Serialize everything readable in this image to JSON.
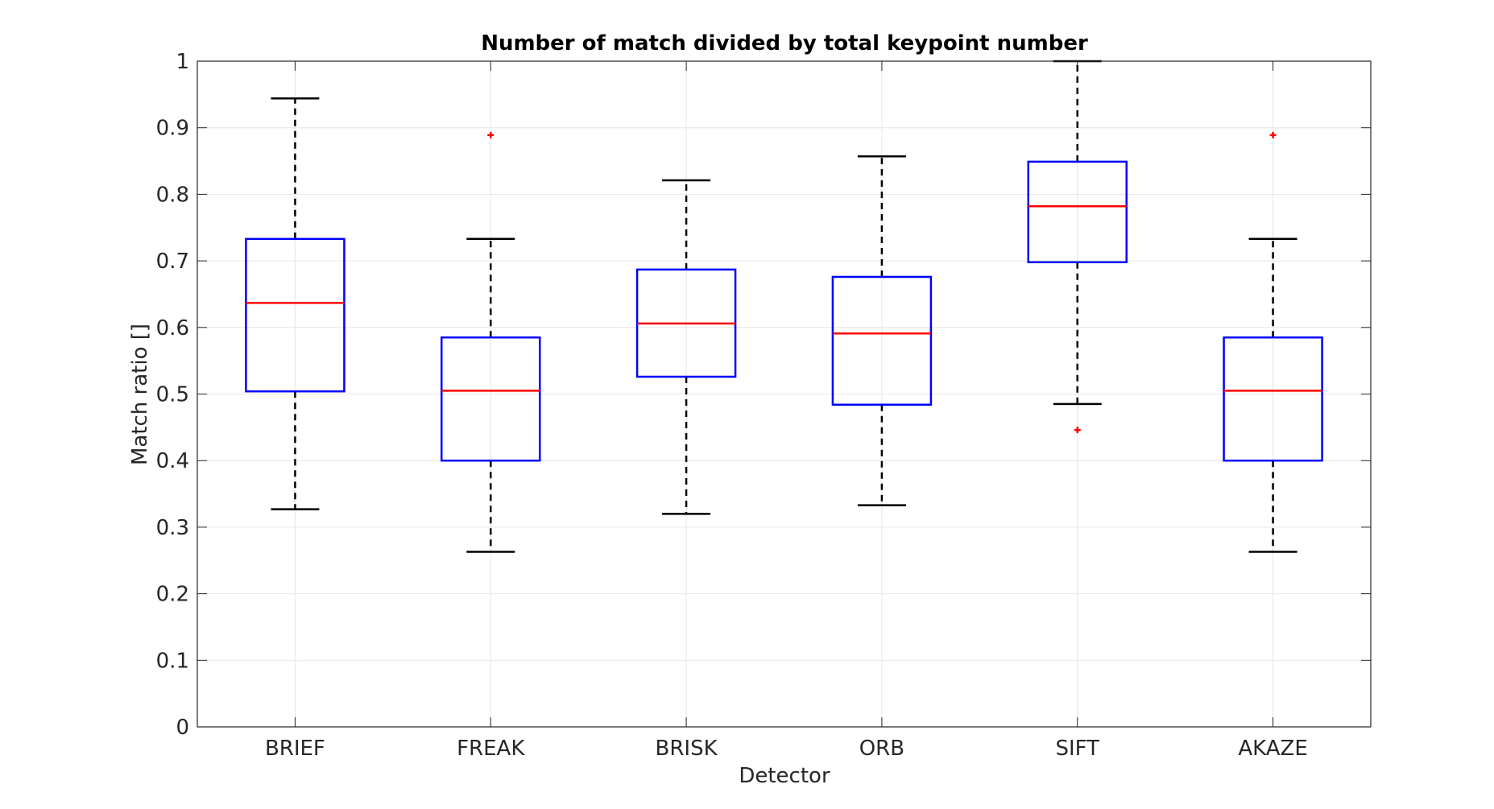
{
  "chart_data": {
    "type": "box",
    "title": "Number of match divided by total keypoint number",
    "xlabel": "Detector",
    "ylabel": "Match ratio []",
    "ylim": [
      0,
      1
    ],
    "yticks": [
      0,
      0.1,
      0.2,
      0.3,
      0.4,
      0.5,
      0.6,
      0.7,
      0.8,
      0.9,
      1
    ],
    "ytick_labels": [
      "0",
      "0.1",
      "0.2",
      "0.3",
      "0.4",
      "0.5",
      "0.6",
      "0.7",
      "0.8",
      "0.9",
      "1"
    ],
    "grid": true,
    "categories": [
      "BRIEF",
      "FREAK",
      "BRISK",
      "ORB",
      "SIFT",
      "AKAZE"
    ],
    "boxes": [
      {
        "whisker_low": 0.327,
        "q1": 0.504,
        "median": 0.637,
        "q3": 0.733,
        "whisker_high": 0.944,
        "outliers": []
      },
      {
        "whisker_low": 0.263,
        "q1": 0.4,
        "median": 0.505,
        "q3": 0.585,
        "whisker_high": 0.733,
        "outliers": [
          0.889
        ]
      },
      {
        "whisker_low": 0.32,
        "q1": 0.526,
        "median": 0.606,
        "q3": 0.687,
        "whisker_high": 0.821,
        "outliers": []
      },
      {
        "whisker_low": 0.333,
        "q1": 0.484,
        "median": 0.591,
        "q3": 0.676,
        "whisker_high": 0.857,
        "outliers": []
      },
      {
        "whisker_low": 0.485,
        "q1": 0.698,
        "median": 0.782,
        "q3": 0.849,
        "whisker_high": 1.0,
        "outliers": [
          0.446
        ]
      },
      {
        "whisker_low": 0.263,
        "q1": 0.4,
        "median": 0.505,
        "q3": 0.585,
        "whisker_high": 0.733,
        "outliers": [
          0.889
        ]
      }
    ],
    "colors": {
      "box": "#0000ff",
      "median": "#ff0000",
      "whisker": "#000000",
      "outlier": "#ff0000",
      "grid": "#e6e6e6",
      "axis": "#262626"
    }
  }
}
